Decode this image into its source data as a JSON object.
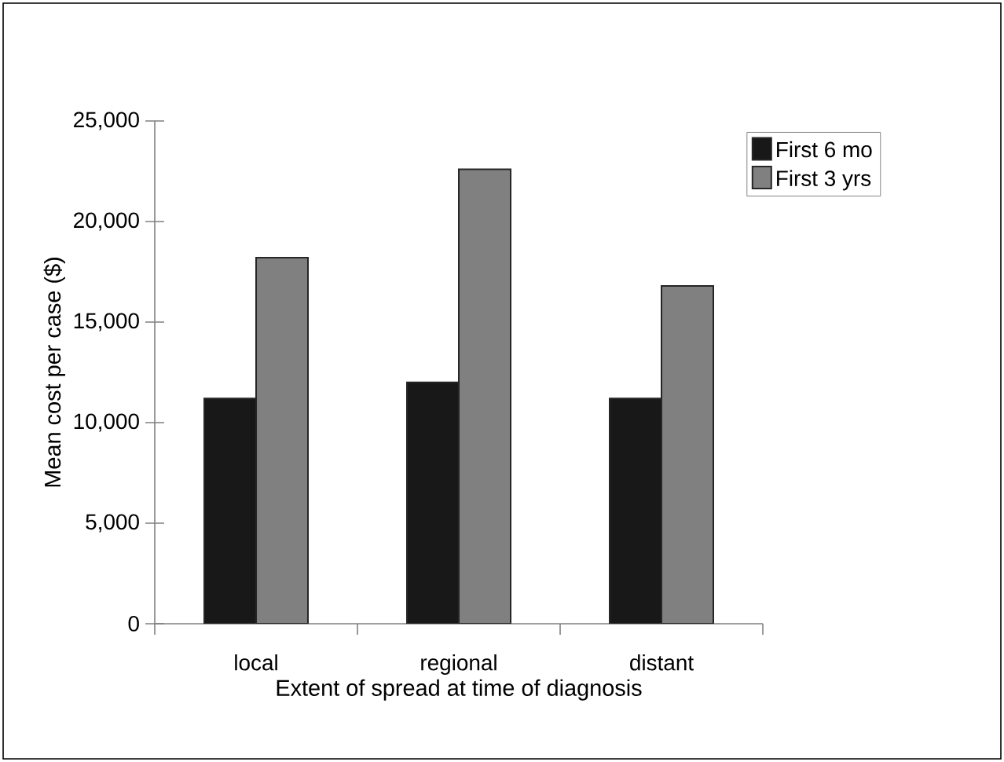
{
  "chart_data": {
    "type": "bar",
    "xlabel": "Extent of spread at time of diagnosis",
    "ylabel": "Mean cost per case ($)",
    "categories": [
      "local",
      "regional",
      "distant"
    ],
    "series": [
      {
        "name": "First 6 mo",
        "color": "#181818",
        "values": [
          11200,
          12000,
          11200
        ]
      },
      {
        "name": "First 3 yrs",
        "color": "#808080",
        "values": [
          18200,
          22600,
          16800
        ]
      }
    ],
    "ylim": [
      0,
      25000
    ],
    "yticks": [
      0,
      {
        "value": 5000,
        "label": "5,000"
      },
      {
        "value": 10000,
        "label": "10,000"
      },
      {
        "value": 15000,
        "label": "15,000"
      },
      {
        "value": 20000,
        "label": "20,000"
      },
      {
        "value": 25000,
        "label": "25,000"
      }
    ],
    "legend": "top right",
    "grid": false
  }
}
